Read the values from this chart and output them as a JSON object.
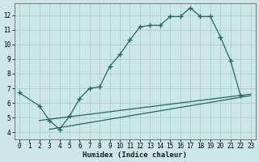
{
  "xlabel": "Humidex (Indice chaleur)",
  "bg_color": "#cce8e4",
  "grid_color": "#aacfcb",
  "line_color": "#1e6b5e",
  "xlim": [
    -0.5,
    23.5
  ],
  "ylim": [
    3.5,
    12.8
  ],
  "xticks": [
    0,
    1,
    2,
    3,
    4,
    5,
    6,
    7,
    8,
    9,
    10,
    11,
    12,
    13,
    14,
    15,
    16,
    17,
    18,
    19,
    20,
    21,
    22,
    23
  ],
  "yticks": [
    4,
    5,
    6,
    7,
    8,
    9,
    10,
    11,
    12
  ],
  "line1_x": [
    0,
    23
  ],
  "line1_y": [
    6.7,
    6.5
  ],
  "line2_x": [
    2,
    23
  ],
  "line2_y": [
    4.8,
    6.6
  ],
  "line3_x": [
    3,
    23
  ],
  "line3_y": [
    4.2,
    6.5
  ],
  "curve_x": [
    0,
    2,
    3,
    4,
    5,
    6,
    7,
    8,
    9,
    10,
    11,
    12,
    13,
    14,
    15,
    16,
    17,
    18,
    19,
    20,
    21,
    22
  ],
  "curve_y": [
    6.7,
    5.8,
    4.8,
    4.2,
    5.1,
    6.3,
    7.0,
    7.1,
    8.5,
    9.3,
    10.3,
    11.2,
    11.3,
    11.3,
    11.9,
    11.9,
    12.5,
    11.9,
    11.9,
    10.5,
    8.9,
    6.5
  ]
}
